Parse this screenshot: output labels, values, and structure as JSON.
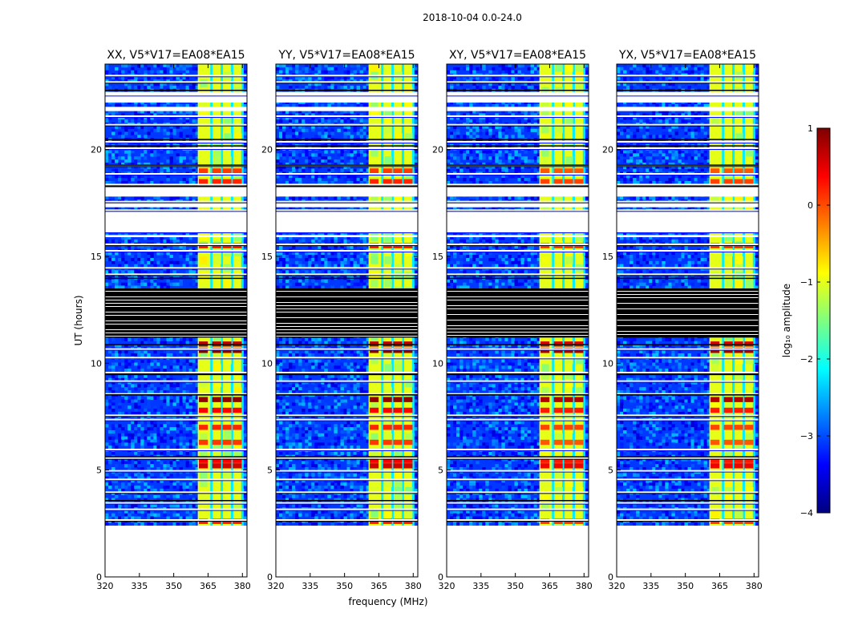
{
  "chart_data": {
    "type": "heatmap",
    "suptitle": "2018-10-04 0.0-24.0",
    "xlabel": "frequency (MHz)",
    "ylabel": "UT (hours)",
    "xlim": [
      320,
      382
    ],
    "ylim": [
      0,
      24
    ],
    "xticks": [
      320,
      335,
      350,
      365,
      380
    ],
    "yticks": [
      0,
      5,
      10,
      15,
      20
    ],
    "colorbar": {
      "label": "log₁₀ amplitude",
      "range": [
        -4,
        1
      ],
      "ticks": [
        1,
        0,
        -1,
        -2,
        -3,
        -4
      ],
      "colormap": [
        "#00007f",
        "#0000ff",
        "#007fff",
        "#00ffff",
        "#7fff7f",
        "#ffff00",
        "#ff7f00",
        "#ff0000",
        "#7f0000"
      ]
    },
    "panels": [
      {
        "title": "XX, V5*V17=EA08*EA15",
        "rfi_band_start": 360.5,
        "rfi_band_level": -1.0,
        "gap_hours": [
          [
            11.2,
            13.5
          ]
        ]
      },
      {
        "title": "YY, V5*V17=EA08*EA15",
        "rfi_band_start": 360.5,
        "rfi_band_level": -1.0,
        "gap_hours": [
          [
            11.2,
            13.5
          ]
        ]
      },
      {
        "title": "XY, V5*V17=EA08*EA15",
        "rfi_band_start": 360.5,
        "rfi_band_level": -1.0,
        "gap_hours": [
          [
            11.2,
            13.5
          ]
        ]
      },
      {
        "title": "YX, V5*V17=EA08*EA15",
        "rfi_band_start": 360.5,
        "rfi_band_level": -1.0,
        "gap_hours": [
          [
            11.2,
            13.5
          ]
        ]
      }
    ],
    "data_start_hour": 2.4,
    "data_end_hour": 24.0,
    "flagged_rows_hours": [
      2.7,
      3.2,
      3.5,
      4.0,
      4.6,
      5.0,
      5.6,
      6.0,
      7.4,
      7.6,
      8.6,
      9.2,
      9.6,
      10.3,
      10.7,
      14.2,
      14.5,
      15.3,
      15.6,
      16.2,
      17.2,
      17.6,
      18.4,
      18.9,
      19.3,
      20.1,
      20.4,
      21.2,
      21.6,
      22.6,
      23.2,
      23.5
    ],
    "empty_hours": [
      [
        15.9,
        16.0
      ],
      [
        16.2,
        17.1
      ],
      [
        17.3,
        17.5
      ],
      [
        17.8,
        18.3
      ],
      [
        21.8,
        22.0
      ],
      [
        22.2,
        22.7
      ]
    ],
    "hot_rows_hours": [
      {
        "hour": 2.6,
        "level": 0.3
      },
      {
        "hour": 5.2,
        "level": 0.6
      },
      {
        "hour": 5.45,
        "level": 0.4
      },
      {
        "hour": 6.3,
        "level": 0.1
      },
      {
        "hour": 7.0,
        "level": 0.2
      },
      {
        "hour": 7.8,
        "level": 0.4
      },
      {
        "hour": 8.3,
        "level": 0.9
      },
      {
        "hour": 10.6,
        "level": 0.95
      },
      {
        "hour": 10.9,
        "level": 0.7
      },
      {
        "hour": 15.5,
        "level": 0.3
      },
      {
        "hour": 18.5,
        "level": 0.2
      },
      {
        "hour": 19.0,
        "level": 0.1
      }
    ]
  }
}
